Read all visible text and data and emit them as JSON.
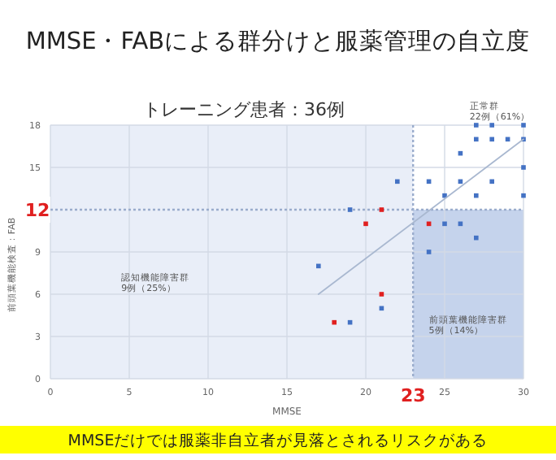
{
  "chart_data": {
    "type": "scatter",
    "title": "MMSE・FABによる群分けと服薬管理の自立度",
    "subtitle": "トレーニング患者：36例",
    "xlabel": "MMSE",
    "ylabel": "前頭葉機能検査：FAB",
    "xlim": [
      0,
      30
    ],
    "ylim": [
      0,
      18
    ],
    "xticks": [
      0,
      5,
      10,
      15,
      20,
      25,
      30
    ],
    "yticks": [
      0,
      3,
      6,
      9,
      15,
      18
    ],
    "grid": true,
    "marker": "square",
    "series": [
      {
        "color": "#4472c4",
        "x": [
          27,
          28,
          30,
          27,
          28,
          29,
          30,
          26,
          30,
          22,
          24,
          26,
          28,
          25,
          27,
          30,
          19,
          25,
          26,
          27,
          24,
          17,
          21,
          19
        ],
        "values": [
          18,
          18,
          18,
          17,
          17,
          17,
          17,
          16,
          15,
          14,
          14,
          14,
          14,
          13,
          13,
          13,
          12,
          11,
          11,
          10,
          9,
          8,
          5,
          4
        ]
      },
      {
        "color": "#e02020",
        "x": [
          21,
          20,
          24,
          21,
          18
        ],
        "values": [
          12,
          11,
          11,
          6,
          4
        ]
      },
      {
        "type": "line",
        "marker": "none",
        "color": "#a9b8d0",
        "x": [
          17,
          30
        ],
        "values": [
          6,
          17
        ]
      }
    ],
    "bands": [
      {
        "axis": "y",
        "from": 0,
        "to": 12,
        "color": "#c5d3ec"
      },
      {
        "axis": "x",
        "from": 0,
        "to": 23,
        "color": "#e9eef8"
      }
    ],
    "ref_lines": [
      {
        "axis": "x",
        "value": 23,
        "label": "23",
        "color": "#9aaccc",
        "line_style": "dotted"
      },
      {
        "axis": "y",
        "value": 12,
        "label": "12",
        "color": "#9aaccc",
        "line_style": "dotted"
      }
    ],
    "annotations": [
      "正常群\n22例（61%）",
      "認知機能障害群\n9例（25%）",
      "前頭葉機能障害群\n5例（14%）",
      "MMSEだけでは服薬非自立者が見落とされるリスクがある"
    ]
  }
}
